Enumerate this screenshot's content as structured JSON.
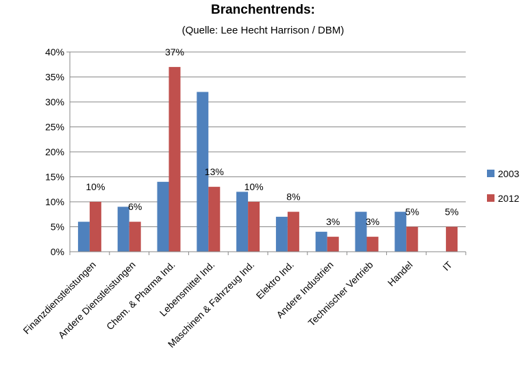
{
  "chart_data": {
    "type": "bar",
    "title": "Branchentrends:",
    "subtitle": "(Quelle: Lee Hecht Harrison / DBM)",
    "categories": [
      "Finanzdienstleistungen",
      "Andere Dienstleistungen",
      "Chem. & Pharma Ind.",
      "Lebensmittel Ind.",
      "Maschinen & Fahrzeug Ind.",
      "Elektro Ind.",
      "Andere Industrien",
      "Technischer Vertrieb",
      "Handel",
      "IT"
    ],
    "series": [
      {
        "name": "2003",
        "color": "#4F81BD",
        "values": [
          6,
          9,
          14,
          32,
          12,
          7,
          4,
          8,
          8,
          0
        ]
      },
      {
        "name": "2012",
        "color": "#C0504D",
        "values": [
          10,
          6,
          37,
          13,
          10,
          8,
          3,
          3,
          5,
          5
        ]
      }
    ],
    "data_labels": [
      "10%",
      "6%",
      "37%",
      "13%",
      "10%",
      "8%",
      "3%",
      "3%",
      "5%",
      "5%"
    ],
    "yticks": [
      "0%",
      "5%",
      "10%",
      "15%",
      "20%",
      "25%",
      "30%",
      "35%",
      "40%"
    ],
    "ylim": [
      0,
      40
    ],
    "grid": true,
    "legend_position": "right"
  }
}
